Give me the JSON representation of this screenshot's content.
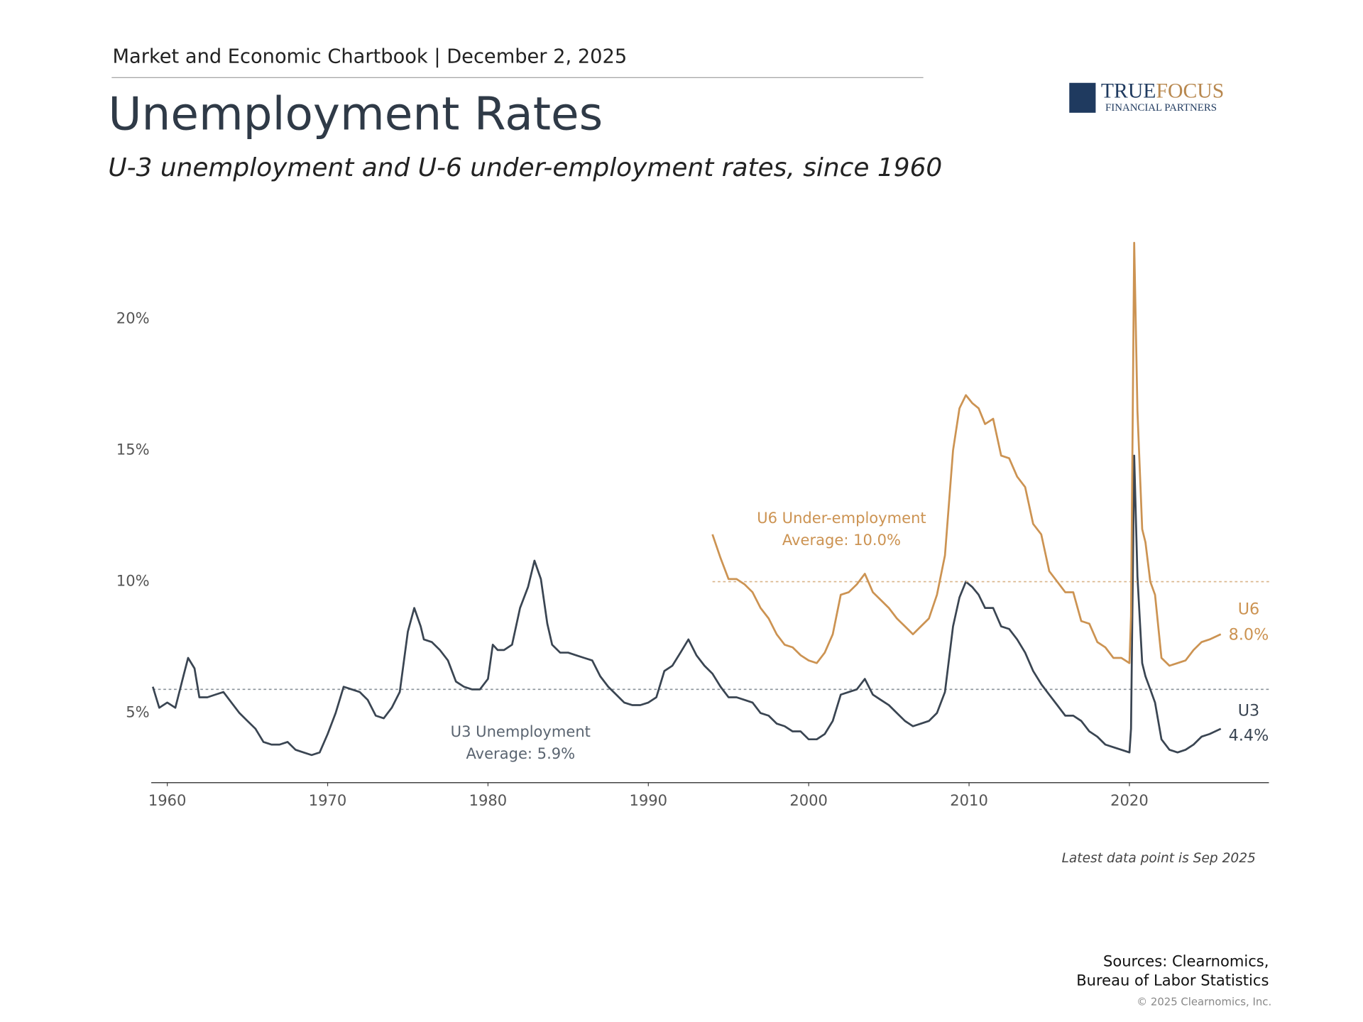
{
  "header": {
    "text": "Market and Economic Chartbook | December 2, 2025"
  },
  "logo": {
    "name_1": "TRUE",
    "name_2": "FOCUS",
    "sub": "FINANCIAL PARTNERS"
  },
  "chart_data": {
    "type": "line",
    "title": "Unemployment Rates",
    "subtitle": "U-3 unemployment and U-6 under-employment rates, since 1960",
    "note": "Latest data point is Sep 2025",
    "xlim": [
      1959,
      2028.7
    ],
    "xticks": [
      1960,
      1970,
      1980,
      1990,
      2000,
      2010,
      2020
    ],
    "ylim": [
      2.35,
      23.5
    ],
    "yticks": [
      {
        "value": 5,
        "label": "5%"
      },
      {
        "value": 10,
        "label": "10%"
      },
      {
        "value": 15,
        "label": "15%"
      },
      {
        "value": 20,
        "label": "20%"
      }
    ],
    "grid": false,
    "series": [
      {
        "name": "U3",
        "color": "#3a4552",
        "end_label": "4.4%",
        "annotation": "U3 Unemployment",
        "average": 5.9,
        "average_label": "Average: 5.9%",
        "x": [
          1959.1,
          1959.5,
          1960,
          1960.5,
          1961,
          1961.3,
          1961.7,
          1962,
          1962.5,
          1963,
          1963.5,
          1964,
          1964.5,
          1965,
          1965.5,
          1966,
          1966.5,
          1967,
          1967.5,
          1968,
          1968.5,
          1969,
          1969.5,
          1970,
          1970.5,
          1971,
          1971.5,
          1972,
          1972.5,
          1973,
          1973.5,
          1974,
          1974.5,
          1975,
          1975.4,
          1975.8,
          1976,
          1976.5,
          1977,
          1977.5,
          1978,
          1978.5,
          1979,
          1979.5,
          1980,
          1980.3,
          1980.6,
          1981,
          1981.5,
          1982,
          1982.5,
          1982.9,
          1983.3,
          1983.7,
          1984,
          1984.5,
          1985,
          1985.5,
          1986,
          1986.5,
          1987,
          1987.5,
          1988,
          1988.5,
          1989,
          1989.5,
          1990,
          1990.5,
          1991,
          1991.5,
          1992,
          1992.5,
          1993,
          1993.5,
          1994,
          1994.5,
          1995,
          1995.5,
          1996,
          1996.5,
          1997,
          1997.5,
          1998,
          1998.5,
          1999,
          1999.5,
          2000,
          2000.5,
          2001,
          2001.5,
          2002,
          2002.5,
          2003,
          2003.5,
          2004,
          2004.5,
          2005,
          2005.5,
          2006,
          2006.5,
          2007,
          2007.5,
          2008,
          2008.5,
          2009,
          2009.4,
          2009.8,
          2010.2,
          2010.6,
          2011,
          2011.5,
          2012,
          2012.5,
          2013,
          2013.5,
          2014,
          2014.5,
          2015,
          2015.5,
          2016,
          2016.5,
          2017,
          2017.5,
          2018,
          2018.5,
          2019,
          2019.5,
          2020,
          2020.1,
          2020.3,
          2020.5,
          2020.8,
          2021,
          2021.3,
          2021.6,
          2022,
          2022.5,
          2023,
          2023.5,
          2024,
          2024.5,
          2025,
          2025.7
        ],
        "values": [
          6.0,
          5.2,
          5.4,
          5.2,
          6.4,
          7.1,
          6.7,
          5.6,
          5.6,
          5.7,
          5.8,
          5.4,
          5.0,
          4.7,
          4.4,
          3.9,
          3.8,
          3.8,
          3.9,
          3.6,
          3.5,
          3.4,
          3.5,
          4.2,
          5.0,
          6.0,
          5.9,
          5.8,
          5.5,
          4.9,
          4.8,
          5.2,
          5.8,
          8.1,
          9.0,
          8.3,
          7.8,
          7.7,
          7.4,
          7.0,
          6.2,
          6.0,
          5.9,
          5.9,
          6.3,
          7.6,
          7.4,
          7.4,
          7.6,
          9.0,
          9.8,
          10.8,
          10.1,
          8.4,
          7.6,
          7.3,
          7.3,
          7.2,
          7.1,
          7.0,
          6.4,
          6.0,
          5.7,
          5.4,
          5.3,
          5.3,
          5.4,
          5.6,
          6.6,
          6.8,
          7.3,
          7.8,
          7.2,
          6.8,
          6.5,
          6.0,
          5.6,
          5.6,
          5.5,
          5.4,
          5.0,
          4.9,
          4.6,
          4.5,
          4.3,
          4.3,
          4.0,
          4.0,
          4.2,
          4.7,
          5.7,
          5.8,
          5.9,
          6.3,
          5.7,
          5.5,
          5.3,
          5.0,
          4.7,
          4.5,
          4.6,
          4.7,
          5.0,
          5.8,
          8.3,
          9.4,
          10.0,
          9.8,
          9.5,
          9.0,
          9.0,
          8.3,
          8.2,
          7.8,
          7.3,
          6.6,
          6.1,
          5.7,
          5.3,
          4.9,
          4.9,
          4.7,
          4.3,
          4.1,
          3.8,
          3.7,
          3.6,
          3.5,
          4.4,
          14.8,
          10.2,
          6.9,
          6.4,
          5.9,
          5.4,
          4.0,
          3.6,
          3.5,
          3.6,
          3.8,
          4.1,
          4.2,
          4.4
        ]
      },
      {
        "name": "U6",
        "color": "#cc9352",
        "end_label": "8.0%",
        "annotation": "U6 Under-employment",
        "average": 10.0,
        "average_label": "Average: 10.0%",
        "x": [
          1994,
          1994.5,
          1995,
          1995.5,
          1996,
          1996.5,
          1997,
          1997.5,
          1998,
          1998.5,
          1999,
          1999.5,
          2000,
          2000.5,
          2001,
          2001.5,
          2002,
          2002.5,
          2003,
          2003.5,
          2004,
          2004.5,
          2005,
          2005.5,
          2006,
          2006.5,
          2007,
          2007.5,
          2008,
          2008.5,
          2009,
          2009.4,
          2009.8,
          2010.2,
          2010.6,
          2011,
          2011.5,
          2012,
          2012.5,
          2013,
          2013.5,
          2014,
          2014.5,
          2015,
          2015.5,
          2016,
          2016.5,
          2017,
          2017.5,
          2018,
          2018.5,
          2019,
          2019.5,
          2020,
          2020.1,
          2020.3,
          2020.5,
          2020.8,
          2021,
          2021.3,
          2021.6,
          2022,
          2022.5,
          2023,
          2023.5,
          2024,
          2024.5,
          2025,
          2025.7
        ],
        "values": [
          11.8,
          10.9,
          10.1,
          10.1,
          9.9,
          9.6,
          9.0,
          8.6,
          8.0,
          7.6,
          7.5,
          7.2,
          7.0,
          6.9,
          7.3,
          8.0,
          9.5,
          9.6,
          9.9,
          10.3,
          9.6,
          9.3,
          9.0,
          8.6,
          8.3,
          8.0,
          8.3,
          8.6,
          9.5,
          11.0,
          15.0,
          16.6,
          17.1,
          16.8,
          16.6,
          16.0,
          16.2,
          14.8,
          14.7,
          14.0,
          13.6,
          12.2,
          11.8,
          10.4,
          10.0,
          9.6,
          9.6,
          8.5,
          8.4,
          7.7,
          7.5,
          7.1,
          7.1,
          6.9,
          8.7,
          22.9,
          16.5,
          12.0,
          11.5,
          10.0,
          9.5,
          7.1,
          6.8,
          6.9,
          7.0,
          7.4,
          7.7,
          7.8,
          8.0
        ]
      }
    ]
  },
  "footer": {
    "sources_1": "Sources: Clearnomics,",
    "sources_2": "Bureau of Labor Statistics",
    "copyright": "© 2025 Clearnomics, Inc."
  }
}
